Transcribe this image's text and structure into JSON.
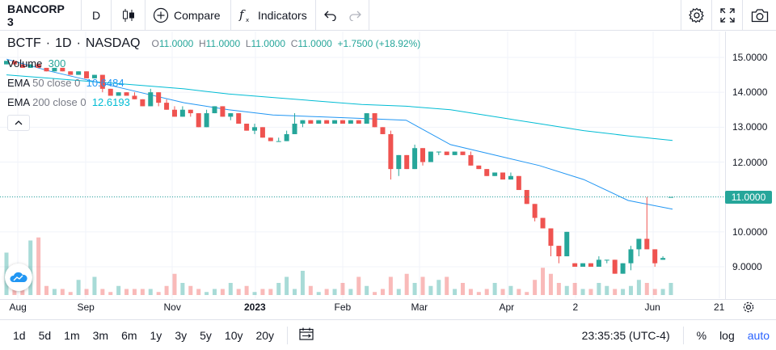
{
  "toolbar": {
    "symbol": "BANCORP 3",
    "interval": "D",
    "compare_label": "Compare",
    "indicators_label": "Indicators"
  },
  "legend": {
    "ticker": "BCTF",
    "interval": "1D",
    "exchange": "NASDAQ",
    "open_label": "O",
    "open": "11.0000",
    "high_label": "H",
    "high": "11.0000",
    "low_label": "L",
    "low": "11.0000",
    "close_label": "C",
    "close": "11.0000",
    "change": "+1.7500 (+18.92%)",
    "volume_label": "Volume",
    "volume_value": "300",
    "ema50_label": "EMA",
    "ema50_params": "50 close 0",
    "ema50_value": "10.6484",
    "ema200_label": "EMA",
    "ema200_params": "200 close 0",
    "ema200_value": "12.6193"
  },
  "price_axis": [
    "15.0000",
    "14.0000",
    "13.0000",
    "12.0000",
    "11.0000",
    "10.0000",
    "9.0000"
  ],
  "last_price": "11.0000",
  "time_axis": [
    "Aug",
    "Sep",
    "Nov",
    "2023",
    "Feb",
    "Mar",
    "Apr",
    "2",
    "Jun",
    "21"
  ],
  "ranges": [
    "1d",
    "5d",
    "1m",
    "3m",
    "6m",
    "1y",
    "3y",
    "5y",
    "10y",
    "20y"
  ],
  "clock": "23:35:35 (UTC-4)",
  "scale_options": {
    "percent": "%",
    "log": "log",
    "auto": "auto"
  },
  "colors": {
    "up": "#26a69a",
    "down": "#ef5350",
    "ema50": "#2196f3",
    "ema200": "#00bcd4",
    "accent": "#2962ff"
  },
  "chart_data": {
    "type": "candlestick",
    "price_range": [
      8.1,
      15.6
    ],
    "series": [
      {
        "name": "BCTF",
        "ohlc": [
          [
            14.8,
            14.9,
            14.8,
            14.9
          ],
          [
            14.9,
            14.9,
            14.8,
            14.8
          ],
          [
            14.8,
            14.8,
            14.7,
            14.7
          ],
          [
            14.7,
            14.8,
            14.7,
            14.8
          ],
          [
            14.8,
            14.8,
            14.7,
            14.7
          ],
          [
            14.7,
            14.7,
            14.6,
            14.6
          ],
          [
            14.6,
            14.7,
            14.6,
            14.7
          ],
          [
            14.7,
            14.7,
            14.6,
            14.6
          ],
          [
            14.6,
            14.6,
            14.5,
            14.5
          ],
          [
            14.5,
            14.6,
            14.5,
            14.6
          ],
          [
            14.6,
            14.6,
            14.4,
            14.4
          ],
          [
            14.4,
            14.5,
            14.4,
            14.5
          ],
          [
            14.5,
            14.5,
            14.0,
            14.1
          ],
          [
            14.1,
            14.1,
            13.9,
            13.9
          ],
          [
            13.9,
            14.0,
            13.9,
            14.0
          ],
          [
            14.0,
            14.0,
            13.9,
            13.9
          ],
          [
            13.9,
            14.0,
            13.8,
            13.8
          ],
          [
            13.8,
            13.8,
            13.6,
            13.6
          ],
          [
            13.6,
            14.1,
            13.6,
            14.0
          ],
          [
            14.0,
            14.0,
            13.6,
            13.7
          ],
          [
            13.7,
            13.8,
            13.5,
            13.5
          ],
          [
            13.5,
            13.6,
            13.3,
            13.3
          ],
          [
            13.3,
            13.6,
            13.3,
            13.5
          ],
          [
            13.5,
            13.5,
            13.3,
            13.4
          ],
          [
            13.4,
            13.4,
            13.0,
            13.0
          ],
          [
            13.0,
            13.5,
            13.0,
            13.4
          ],
          [
            13.4,
            13.6,
            13.4,
            13.6
          ],
          [
            13.6,
            13.6,
            13.3,
            13.3
          ],
          [
            13.3,
            13.4,
            13.2,
            13.4
          ],
          [
            13.4,
            13.4,
            13.1,
            13.1
          ],
          [
            13.1,
            13.1,
            12.9,
            12.9
          ],
          [
            12.9,
            13.1,
            12.8,
            13.0
          ],
          [
            13.0,
            13.0,
            12.7,
            12.7
          ],
          [
            12.7,
            12.7,
            12.6,
            12.6
          ],
          [
            12.6,
            12.7,
            12.6,
            12.6
          ],
          [
            12.6,
            12.9,
            12.6,
            12.8
          ],
          [
            12.8,
            13.4,
            12.8,
            13.1
          ],
          [
            13.1,
            13.2,
            13.0,
            13.2
          ],
          [
            13.2,
            13.2,
            13.1,
            13.1
          ],
          [
            13.1,
            13.2,
            13.1,
            13.2
          ],
          [
            13.2,
            13.2,
            13.1,
            13.1
          ],
          [
            13.1,
            13.2,
            13.1,
            13.2
          ],
          [
            13.2,
            13.2,
            13.1,
            13.1
          ],
          [
            13.1,
            13.2,
            13.1,
            13.2
          ],
          [
            13.2,
            13.2,
            13.1,
            13.1
          ],
          [
            13.1,
            13.4,
            13.1,
            13.4
          ],
          [
            13.4,
            13.4,
            13.0,
            13.0
          ],
          [
            13.0,
            13.0,
            12.8,
            12.8
          ],
          [
            12.8,
            12.9,
            11.5,
            11.8
          ],
          [
            11.8,
            12.2,
            11.6,
            12.2
          ],
          [
            12.2,
            12.2,
            11.8,
            11.8
          ],
          [
            11.8,
            12.5,
            11.8,
            12.4
          ],
          [
            12.4,
            12.4,
            11.9,
            12.0
          ],
          [
            12.0,
            12.3,
            12.0,
            12.3
          ],
          [
            12.3,
            12.3,
            12.2,
            12.3
          ],
          [
            12.3,
            12.3,
            12.2,
            12.2
          ],
          [
            12.2,
            12.3,
            12.2,
            12.3
          ],
          [
            12.3,
            12.3,
            12.2,
            12.2
          ],
          [
            12.2,
            12.3,
            11.9,
            11.9
          ],
          [
            11.9,
            11.9,
            11.8,
            11.8
          ],
          [
            11.8,
            11.8,
            11.6,
            11.6
          ],
          [
            11.6,
            11.7,
            11.6,
            11.7
          ],
          [
            11.7,
            11.7,
            11.5,
            11.5
          ],
          [
            11.5,
            11.7,
            11.5,
            11.6
          ],
          [
            11.6,
            11.6,
            11.2,
            11.2
          ],
          [
            11.2,
            11.2,
            10.8,
            10.8
          ],
          [
            10.8,
            10.8,
            10.3,
            10.4
          ],
          [
            10.4,
            10.4,
            10.1,
            10.1
          ],
          [
            10.1,
            10.1,
            9.3,
            9.6
          ],
          [
            9.6,
            9.6,
            9.1,
            9.3
          ],
          [
            9.3,
            10.0,
            9.3,
            10.0
          ],
          [
            9.1,
            9.1,
            9.0,
            9.0
          ],
          [
            9.0,
            9.1,
            9.0,
            9.1
          ],
          [
            9.1,
            9.1,
            9.0,
            9.0
          ],
          [
            9.0,
            9.3,
            9.0,
            9.2
          ],
          [
            9.2,
            9.2,
            9.1,
            9.2
          ],
          [
            9.2,
            9.2,
            8.8,
            8.8
          ],
          [
            8.8,
            9.1,
            8.8,
            9.1
          ],
          [
            9.1,
            9.6,
            8.9,
            9.5
          ],
          [
            9.5,
            9.8,
            9.3,
            9.8
          ],
          [
            9.8,
            11.0,
            9.5,
            9.5
          ],
          [
            9.5,
            9.5,
            9.0,
            9.1
          ],
          [
            9.2,
            9.3,
            9.2,
            9.25
          ],
          [
            11.0,
            11.0,
            11.0,
            11.0
          ]
        ]
      }
    ],
    "ema50": [
      14.95,
      14.6,
      14.3,
      14.0,
      13.7,
      13.5,
      13.35,
      13.3,
      13.25,
      13.2,
      12.5,
      12.2,
      11.9,
      11.5,
      10.9,
      10.65
    ],
    "ema200": [
      14.5,
      14.4,
      14.3,
      14.2,
      14.1,
      13.95,
      13.85,
      13.75,
      13.65,
      13.6,
      13.5,
      13.3,
      13.1,
      12.9,
      12.75,
      12.62
    ],
    "volume": [
      0.7,
      0.5,
      0.25,
      0.9,
      0.95,
      0.15,
      0.1,
      0.1,
      0.05,
      0.25,
      0.1,
      0.3,
      0.1,
      0.05,
      0.15,
      0.1,
      0.1,
      0.1,
      0.1,
      0.05,
      0.15,
      0.35,
      0.2,
      0.15,
      0.1,
      0.05,
      0.1,
      0.1,
      0.2,
      0.1,
      0.15,
      0.05,
      0.1,
      0.1,
      0.2,
      0.3,
      0.1,
      0.4,
      0.15,
      0.05,
      0.1,
      0.1,
      0.2,
      0.1,
      0.3,
      0.15,
      0.05,
      0.1,
      0.3,
      0.1,
      0.35,
      0.2,
      0.3,
      0.15,
      0.25,
      0.3,
      0.1,
      0.2,
      0.1,
      0.05,
      0.1,
      0.2,
      0.1,
      0.15,
      0.1,
      0.05,
      0.25,
      0.45,
      0.35,
      0.2,
      0.15,
      0.2,
      0.1,
      0.1,
      0.2,
      0.15,
      0.1,
      0.1,
      0.15,
      0.25,
      0.2,
      0.1,
      0.1,
      0.2
    ]
  }
}
